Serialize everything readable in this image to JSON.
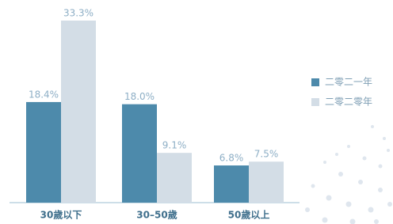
{
  "chart_data": {
    "type": "bar",
    "categories": [
      "30歲以下",
      "30–50歲",
      "50歲以上"
    ],
    "series": [
      {
        "name": "二零二一年",
        "color": "#4d8aab",
        "values": [
          18.4,
          18.0,
          6.8
        ],
        "value_labels": [
          "18.4%",
          "18.0%",
          "6.8%"
        ]
      },
      {
        "name": "二零二零年",
        "color": "#d3dde6",
        "values": [
          33.3,
          9.1,
          7.5
        ],
        "value_labels": [
          "33.3%",
          "9.1%",
          "7.5%"
        ]
      }
    ],
    "legend": "right"
  }
}
